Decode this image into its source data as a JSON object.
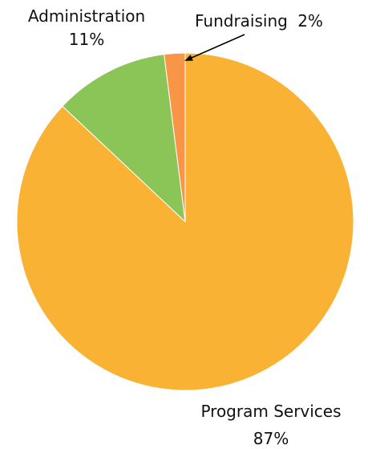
{
  "chart_data": {
    "type": "pie",
    "categories": [
      "Program Services",
      "Administration",
      "Fundraising"
    ],
    "values": [
      87,
      11,
      2
    ],
    "value_labels": [
      "87%",
      "11%",
      "2%"
    ],
    "colors": [
      "#F9B233",
      "#8BC557",
      "#F99546"
    ],
    "title": "",
    "legend": "none",
    "start_angle": "12 o'clock",
    "direction": "clockwise"
  }
}
